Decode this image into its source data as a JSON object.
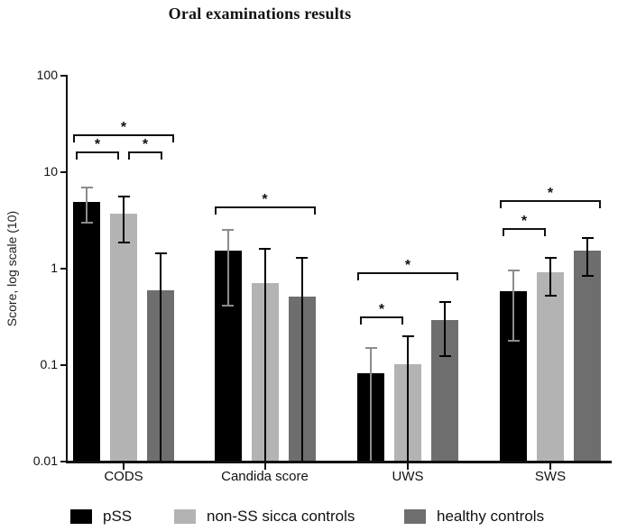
{
  "title": "Oral examinations results",
  "chart_data": {
    "type": "bar",
    "scale": "log10",
    "title": "Oral examinations results",
    "ylabel": "Score, log scale (10)",
    "ylim": [
      0.01,
      100
    ],
    "y_ticks": [
      100,
      10,
      1,
      0.1,
      0.01
    ],
    "y_tick_labels": [
      "100",
      "10",
      "1",
      "0.1",
      "0.01"
    ],
    "categories": [
      "CODS",
      "Candida score",
      "UWS",
      "SWS"
    ],
    "grid": false,
    "legend_position": "bottom",
    "series": [
      {
        "name": "pSS",
        "color": "#000000",
        "error_color": "#8c8c8c",
        "values": [
          4.8,
          1.5,
          0.08,
          0.57
        ],
        "error_high": [
          6.9,
          2.5,
          0.15,
          0.95
        ],
        "error_low": [
          2.9,
          0.4,
          null,
          0.17
        ]
      },
      {
        "name": "non-SS sicca controls",
        "color": "#b3b3b3",
        "error_color": "#000000",
        "values": [
          3.6,
          0.7,
          0.1,
          0.9
        ],
        "error_high": [
          5.6,
          1.6,
          0.2,
          1.3
        ],
        "error_low": [
          1.8,
          null,
          null,
          0.5
        ]
      },
      {
        "name": "healthy controls",
        "color": "#6e6e6e",
        "error_color": "#000000",
        "values": [
          0.58,
          0.5,
          0.29,
          1.5
        ],
        "error_high": [
          1.45,
          1.3,
          0.45,
          2.1
        ],
        "error_low": [
          null,
          null,
          0.12,
          0.8
        ]
      }
    ],
    "significance_brackets": [
      {
        "group": "CODS",
        "from": 0,
        "to": 2,
        "label": "*",
        "level": 24
      },
      {
        "group": "CODS",
        "from": 0,
        "to": 1,
        "label": "*",
        "level": 16
      },
      {
        "group": "CODS",
        "from": 1,
        "to": 2,
        "label": "*",
        "level": 16
      },
      {
        "group": "Candida score",
        "from": 0,
        "to": 2,
        "label": "*",
        "level": 4.3
      },
      {
        "group": "UWS",
        "from": 0,
        "to": 2,
        "label": "*",
        "level": 0.9
      },
      {
        "group": "UWS",
        "from": 0,
        "to": 1,
        "label": "*",
        "level": 0.31
      },
      {
        "group": "SWS",
        "from": 0,
        "to": 2,
        "label": "*",
        "level": 5.0
      },
      {
        "group": "SWS",
        "from": 0,
        "to": 1,
        "label": "*",
        "level": 2.6
      }
    ]
  }
}
